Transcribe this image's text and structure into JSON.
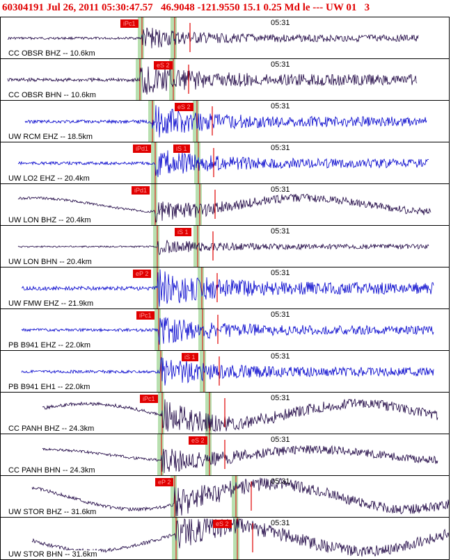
{
  "header": {
    "event_id": "60304191",
    "date": "Jul 26, 2011",
    "time": "05:30:47.57",
    "lat": "46.9048",
    "lon": "-121.9550",
    "depth": "15.1",
    "magnitude": "0.25",
    "mag_type": "Md",
    "flag": "le",
    "separator": "---",
    "network": "UW",
    "version": "01",
    "extra": "3"
  },
  "colors": {
    "header_red": "#e00000",
    "pick_red": "#e00000",
    "blue_trace": "#0000cc",
    "dark_trace": "#1a0040",
    "window_green": "#b8e0b0"
  },
  "time_tick": "05:31",
  "traces": [
    {
      "label": "CC OBSR BHZ -- 10.6km",
      "color": "dark",
      "picks": [
        {
          "text": "iPc1"
        }
      ]
    },
    {
      "label": "CC OBSR BHN -- 10.6km",
      "color": "dark",
      "picks": [
        {
          "text": "eS 2"
        }
      ]
    },
    {
      "label": "UW RCM EHZ -- 18.5km",
      "color": "blue",
      "picks": [
        {
          "text": "eS 2"
        }
      ]
    },
    {
      "label": "UW LO2 EHZ -- 20.4km",
      "color": "blue",
      "picks": [
        {
          "text": "iPd1"
        },
        {
          "text": "iS 1"
        }
      ]
    },
    {
      "label": "UW LON BHZ -- 20.4km",
      "color": "dark",
      "picks": [
        {
          "text": "iPd1"
        }
      ]
    },
    {
      "label": "UW LON BHN -- 20.4km",
      "color": "dark",
      "picks": [
        {
          "text": "iS 1"
        }
      ]
    },
    {
      "label": "UW FMW EHZ -- 21.9km",
      "color": "blue",
      "picks": [
        {
          "text": "eP 2"
        }
      ]
    },
    {
      "label": "PB B941 EHZ -- 22.0km",
      "color": "blue",
      "picks": [
        {
          "text": "iPc1"
        }
      ]
    },
    {
      "label": "PB B941 EH1 -- 22.0km",
      "color": "blue",
      "picks": [
        {
          "text": "iS 1"
        }
      ]
    },
    {
      "label": "CC PANH BHZ -- 24.3km",
      "color": "dark",
      "picks": [
        {
          "text": "iPc1"
        }
      ]
    },
    {
      "label": "CC PANH BHN -- 24.3km",
      "color": "dark",
      "picks": [
        {
          "text": "eS 2"
        }
      ]
    },
    {
      "label": "UW STOR BHZ -- 31.6km",
      "color": "dark",
      "picks": [
        {
          "text": "eP 2"
        }
      ]
    },
    {
      "label": "UW STOR BHN -- 31.6km",
      "color": "dark",
      "picks": [
        {
          "text": "eS 2"
        }
      ]
    }
  ]
}
